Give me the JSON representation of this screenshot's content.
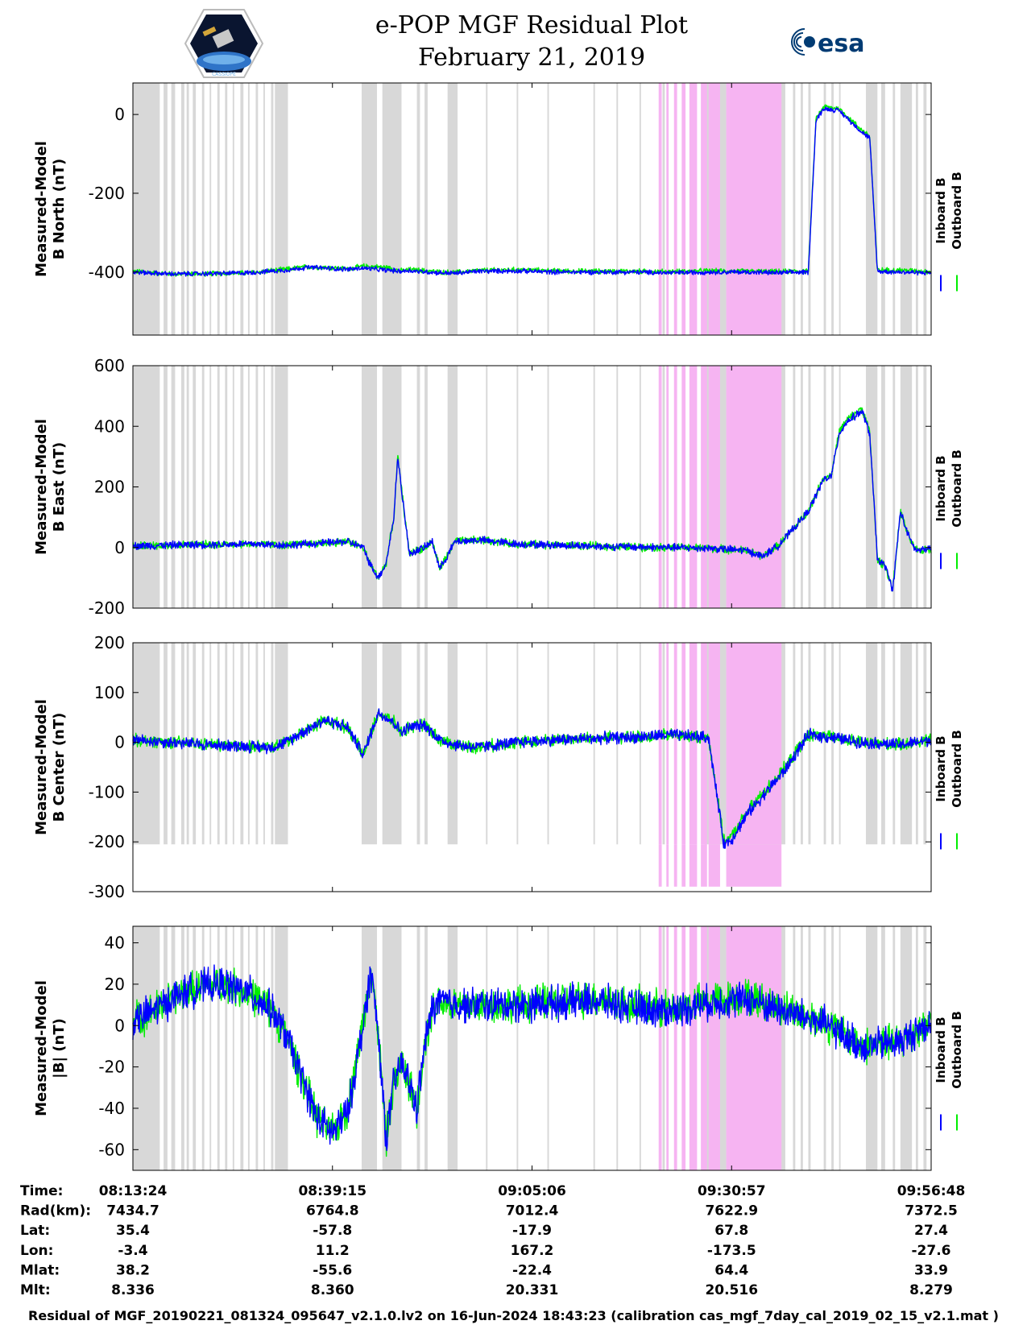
{
  "header": {
    "title": "e-POP MGF Residual Plot",
    "date": "February 21, 2019",
    "logo_left": "CASSIOPE",
    "logo_right": "esa"
  },
  "footer": {
    "caption": "Residual of MGF_20190221_081324_095647_v2.1.0.lv2 on 16-Jun-2024 18:43:23 (calibration cas_mgf_7day_cal_2019_02_15_v2.1.mat )"
  },
  "colors": {
    "inboard": "#0000ff",
    "outboard": "#00ee00",
    "gap_gray": "#d8d8d8",
    "gap_pink": "#f6b4f2"
  },
  "chart_data": [
    {
      "type": "line",
      "ylabel": [
        "Measured-Model",
        "B North (nT)"
      ],
      "ylim": [
        -560,
        80
      ],
      "yticks": [
        0,
        -200,
        -400
      ],
      "ytick_labels": [
        "0",
        "-200",
        "-400"
      ],
      "legend": [
        "Inboard B",
        "Outboard B"
      ],
      "x_minutes": [
        0,
        5,
        10,
        15,
        20,
        22,
        23,
        25,
        28,
        30,
        33,
        35,
        36,
        37,
        40,
        42,
        45,
        50,
        55,
        60,
        65,
        70,
        75,
        80,
        84,
        88,
        89,
        90,
        92,
        95,
        96,
        97,
        100,
        104
      ],
      "series": [
        {
          "name": "Outboard B",
          "values": [
            -398,
            -405,
            -404,
            -402,
            -393,
            -388,
            -387,
            -388,
            -392,
            -385,
            -388,
            -397,
            -394,
            -395,
            -400,
            -401,
            -396,
            -394,
            -397,
            -398,
            -398,
            -399,
            -397,
            -398,
            -399,
            -397,
            -10,
            20,
            15,
            -40,
            -55,
            -395,
            -395,
            -399
          ]
        },
        {
          "name": "Inboard B",
          "values": [
            -400,
            -405,
            -404,
            -402,
            -395,
            -390,
            -388,
            -390,
            -393,
            -390,
            -395,
            -398,
            -396,
            -398,
            -402,
            -403,
            -398,
            -397,
            -400,
            -400,
            -400,
            -402,
            -400,
            -400,
            -402,
            -400,
            -15,
            15,
            10,
            -45,
            -60,
            -398,
            -400,
            -402
          ]
        }
      ]
    },
    {
      "type": "line",
      "ylabel": [
        "Measured-Model",
        "B East (nT)"
      ],
      "ylim": [
        -200,
        600
      ],
      "yticks": [
        600,
        400,
        200,
        0,
        -200
      ],
      "ytick_labels": [
        "600",
        "400",
        "200",
        "0",
        "-200"
      ],
      "legend": [
        "Inboard B",
        "Outboard B"
      ],
      "x_minutes": [
        0,
        5,
        10,
        15,
        20,
        25,
        28,
        30,
        31,
        32,
        33,
        34,
        34.5,
        36,
        38,
        39,
        40,
        42,
        45,
        50,
        55,
        60,
        65,
        70,
        75,
        80,
        82,
        84,
        86,
        88,
        90,
        91,
        92,
        93,
        95,
        96,
        97,
        98,
        99,
        100,
        101,
        102,
        104
      ],
      "series": [
        {
          "name": "Outboard B",
          "values": [
            5,
            8,
            10,
            12,
            8,
            15,
            20,
            0,
            -60,
            -100,
            -50,
            100,
            300,
            -20,
            0,
            20,
            -70,
            20,
            25,
            12,
            8,
            5,
            2,
            0,
            -2,
            -10,
            -30,
            5,
            60,
            120,
            230,
            240,
            380,
            420,
            460,
            380,
            -40,
            -60,
            -140,
            120,
            40,
            -10,
            -5
          ]
        },
        {
          "name": "Inboard B",
          "values": [
            5,
            8,
            10,
            12,
            8,
            15,
            20,
            0,
            -60,
            -100,
            -50,
            100,
            300,
            -20,
            0,
            20,
            -70,
            20,
            25,
            12,
            8,
            5,
            2,
            0,
            -2,
            -10,
            -30,
            5,
            60,
            120,
            225,
            235,
            375,
            415,
            450,
            375,
            -40,
            -60,
            -140,
            120,
            40,
            -10,
            -5
          ]
        }
      ]
    },
    {
      "type": "line",
      "ylabel": [
        "Measured-Model",
        "B Center (nT)"
      ],
      "ylim": [
        -300,
        200
      ],
      "yticks": [
        200,
        100,
        0,
        -100,
        -200,
        -300
      ],
      "ytick_labels": [
        "200",
        "100",
        "0",
        "-100",
        "-200",
        "-300"
      ],
      "legend": [
        "Inboard B",
        "Outboard B"
      ],
      "x_minutes": [
        0,
        5,
        10,
        15,
        18,
        20,
        22,
        25,
        28,
        30,
        32,
        34,
        35,
        36,
        38,
        40,
        42,
        45,
        50,
        55,
        60,
        65,
        70,
        75,
        77,
        78,
        80,
        85,
        88,
        91,
        95,
        100,
        104
      ],
      "series": [
        {
          "name": "Outboard B",
          "values": [
            5,
            0,
            -5,
            -8,
            -10,
            0,
            20,
            45,
            30,
            -25,
            60,
            40,
            20,
            30,
            35,
            5,
            -5,
            -10,
            0,
            5,
            8,
            10,
            15,
            10,
            -200,
            -190,
            -140,
            -50,
            15,
            10,
            0,
            -5,
            5
          ]
        },
        {
          "name": "Inboard B",
          "values": [
            5,
            0,
            -5,
            -8,
            -10,
            0,
            20,
            45,
            30,
            -25,
            60,
            40,
            20,
            30,
            35,
            5,
            -5,
            -10,
            0,
            5,
            8,
            10,
            15,
            10,
            -205,
            -195,
            -145,
            -55,
            15,
            10,
            0,
            -5,
            5
          ]
        }
      ]
    },
    {
      "type": "line",
      "ylabel": [
        "Measured-Model",
        "|B| (nT)"
      ],
      "ylim": [
        -70,
        48
      ],
      "yticks": [
        40,
        20,
        0,
        -20,
        -40,
        -60
      ],
      "ytick_labels": [
        "40",
        "20",
        "0",
        "-20",
        "-40",
        "-60"
      ],
      "legend": [
        "Inboard B",
        "Outboard B"
      ],
      "x_minutes": [
        0,
        3,
        6,
        9,
        12,
        15,
        18,
        20,
        22,
        24,
        26,
        28,
        30,
        31,
        32,
        33,
        34,
        35,
        36,
        37,
        38,
        39,
        40,
        42,
        45,
        50,
        55,
        60,
        65,
        70,
        75,
        80,
        85,
        90,
        95,
        100,
        104
      ],
      "series": [
        {
          "name": "Outboard B",
          "values": [
            2,
            8,
            15,
            19,
            20,
            16,
            8,
            -5,
            -25,
            -45,
            -52,
            -40,
            2,
            28,
            -5,
            -55,
            -28,
            -18,
            -28,
            -40,
            -10,
            8,
            12,
            10,
            10,
            10,
            12,
            13,
            10,
            8,
            12,
            14,
            8,
            2,
            -10,
            -8,
            2
          ]
        },
        {
          "name": "Inboard B",
          "values": [
            2,
            8,
            15,
            19,
            20,
            16,
            8,
            -5,
            -25,
            -45,
            -52,
            -42,
            0,
            27,
            -5,
            -55,
            -28,
            -18,
            -28,
            -40,
            -10,
            8,
            12,
            10,
            10,
            10,
            11,
            12,
            9,
            7,
            11,
            13,
            7,
            1,
            -10,
            -8,
            2
          ]
        }
      ]
    }
  ],
  "gaps": {
    "gray_minutes": [
      [
        0,
        3.5
      ],
      [
        4.0,
        4.5
      ],
      [
        5.0,
        5.5
      ],
      [
        6.3,
        6.7
      ],
      [
        7.0,
        7.3
      ],
      [
        7.8,
        8.2
      ],
      [
        9.0,
        9.3
      ],
      [
        10.0,
        10.2
      ],
      [
        11.0,
        11.3
      ],
      [
        12.0,
        12.3
      ],
      [
        13.0,
        13.2
      ],
      [
        14.0,
        14.4
      ],
      [
        15.0,
        15.2
      ],
      [
        16.0,
        16.3
      ],
      [
        17.0,
        17.2
      ],
      [
        18.0,
        18.3
      ],
      [
        18.5,
        20.2
      ],
      [
        29.8,
        31.8
      ],
      [
        32.5,
        35.0
      ],
      [
        37.0,
        37.4
      ],
      [
        38.0,
        38.4
      ],
      [
        41.0,
        42.3
      ],
      [
        46.0,
        46.2
      ],
      [
        50.0,
        50.2
      ],
      [
        54.0,
        54.2
      ],
      [
        60.0,
        60.2
      ],
      [
        63.0,
        63.2
      ],
      [
        66.0,
        66.2
      ],
      [
        69.0,
        69.3
      ],
      [
        74.5,
        77.3
      ],
      [
        77.5,
        85.0
      ],
      [
        86.0,
        86.3
      ],
      [
        87.0,
        87.3
      ],
      [
        88.0,
        88.3
      ],
      [
        90.0,
        90.3
      ],
      [
        91.0,
        91.3
      ],
      [
        92.0,
        92.2
      ],
      [
        95.5,
        97.0
      ],
      [
        97.5,
        98.0
      ],
      [
        99.0,
        99.3
      ],
      [
        100.0,
        101.5
      ],
      [
        102.0,
        102.3
      ],
      [
        103.0,
        103.4
      ]
    ],
    "pink_minutes": [
      [
        68.5,
        68.9
      ],
      [
        69.5,
        69.8
      ],
      [
        70.5,
        70.9
      ],
      [
        71.5,
        72.0
      ],
      [
        72.5,
        73.5
      ],
      [
        74.0,
        74.8
      ],
      [
        75.0,
        76.5
      ],
      [
        77.3,
        84.5
      ]
    ]
  },
  "axis_x": {
    "range_minutes": [
      0,
      104
    ],
    "tick_minutes": [
      0,
      26,
      52,
      78,
      104
    ]
  },
  "ephemeris": {
    "row_labels": [
      "Time:",
      "Rad(km):",
      "Lat:",
      "Lon:",
      "Mlat:",
      "Mlt:"
    ],
    "columns": [
      [
        "08:13:24",
        "7434.7",
        "35.4",
        "-3.4",
        "38.2",
        "8.336"
      ],
      [
        "08:39:15",
        "6764.8",
        "-57.8",
        "11.2",
        "-55.6",
        "8.360"
      ],
      [
        "09:05:06",
        "7012.4",
        "-17.9",
        "167.2",
        "-22.4",
        "20.331"
      ],
      [
        "09:30:57",
        "7622.9",
        "67.8",
        "-173.5",
        "64.4",
        "20.516"
      ],
      [
        "09:56:48",
        "7372.5",
        "27.4",
        "-27.6",
        "33.9",
        "8.279"
      ]
    ]
  }
}
